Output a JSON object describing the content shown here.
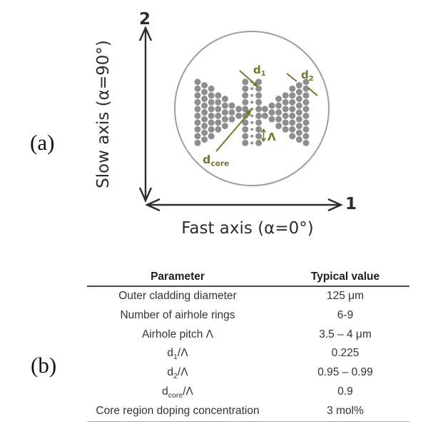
{
  "panels": {
    "a": "(a)",
    "b": "(b)"
  },
  "diagram": {
    "axis_labels": {
      "vertical_number": "2",
      "horizontal_number": "1",
      "slow": "Slow axis (α=90°)",
      "fast": "Fast axis (α=0°)"
    },
    "annotations": {
      "d1": {
        "base": "d",
        "sub": "1"
      },
      "d2": {
        "base": "d",
        "sub": "2"
      },
      "pitch": "Λ",
      "dcore": {
        "base": "d",
        "sub": "core"
      }
    },
    "colors": {
      "dots": "#8e8e8e",
      "circle_stroke": "#9e9e9e",
      "annotation": "#76762c",
      "axis": "#2d2d2d"
    }
  },
  "table": {
    "headers": [
      "Parameter",
      "Typical value"
    ],
    "rows": [
      {
        "param": [
          {
            "t": "Outer cladding diameter"
          }
        ],
        "value": "125 μm"
      },
      {
        "param": [
          {
            "t": "Number of airhole rings"
          }
        ],
        "value": "6-9"
      },
      {
        "param": [
          {
            "t": "Airhole pitch Λ"
          }
        ],
        "value": "3.5 – 4 μm"
      },
      {
        "param": [
          {
            "t": "d"
          },
          {
            "sub": "1"
          },
          {
            "t": "/Λ"
          }
        ],
        "value": "0.225"
      },
      {
        "param": [
          {
            "t": "d"
          },
          {
            "sub": "2"
          },
          {
            "t": "/Λ"
          }
        ],
        "value": "0.95 – 0.99"
      },
      {
        "param": [
          {
            "t": "d"
          },
          {
            "sub": "core"
          },
          {
            "t": "/Λ"
          }
        ],
        "value": "0.9"
      },
      {
        "param": [
          {
            "t": "Core region doping concentration"
          }
        ],
        "value": "3 mol%"
      }
    ]
  }
}
